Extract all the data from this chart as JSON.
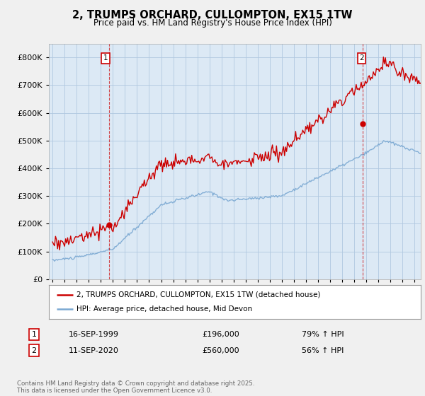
{
  "title": "2, TRUMPS ORCHARD, CULLOMPTON, EX15 1TW",
  "subtitle": "Price paid vs. HM Land Registry's House Price Index (HPI)",
  "legend_line1": "2, TRUMPS ORCHARD, CULLOMPTON, EX15 1TW (detached house)",
  "legend_line2": "HPI: Average price, detached house, Mid Devon",
  "transaction1_label": "1",
  "transaction1_date": "16-SEP-1999",
  "transaction1_price": "£196,000",
  "transaction1_hpi": "79% ↑ HPI",
  "transaction2_label": "2",
  "transaction2_date": "11-SEP-2020",
  "transaction2_price": "£560,000",
  "transaction2_hpi": "56% ↑ HPI",
  "footer": "Contains HM Land Registry data © Crown copyright and database right 2025.\nThis data is licensed under the Open Government Licence v3.0.",
  "red_color": "#cc0000",
  "blue_color": "#7aa8d2",
  "marker_box_color": "#cc0000",
  "background_color": "#f0f0f0",
  "plot_bg_color": "#dce9f5",
  "grid_color": "#b0c8e0",
  "ylim": [
    0,
    850000
  ],
  "yticks": [
    0,
    100000,
    200000,
    300000,
    400000,
    500000,
    600000,
    700000,
    800000
  ],
  "xlim_start": 1994.7,
  "xlim_end": 2025.5,
  "t1_x": 1999.71,
  "t2_x": 2020.71,
  "t1_y": 196000,
  "t2_y": 560000
}
